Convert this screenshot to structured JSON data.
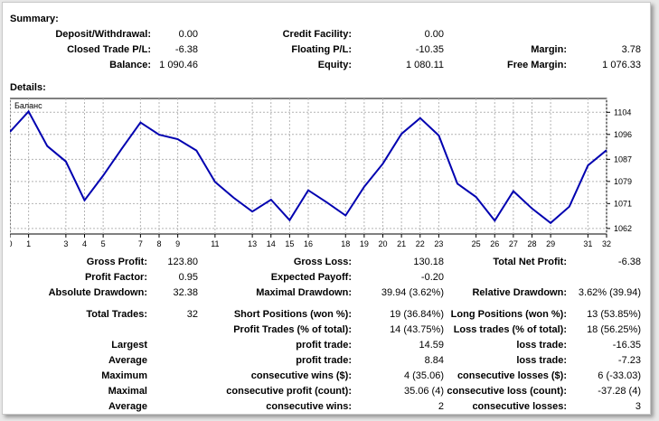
{
  "summary": {
    "title": "Summary:",
    "deposit_label": "Deposit/Withdrawal:",
    "deposit_value": "0.00",
    "credit_label": "Credit Facility:",
    "credit_value": "0.00",
    "closed_label": "Closed Trade P/L:",
    "closed_value": "-6.38",
    "floating_label": "Floating P/L:",
    "floating_value": "-10.35",
    "margin_label": "Margin:",
    "margin_value": "3.78",
    "balance_label": "Balance:",
    "balance_value": "1 090.46",
    "equity_label": "Equity:",
    "equity_value": "1 080.11",
    "free_margin_label": "Free Margin:",
    "free_margin_value": "1 076.33"
  },
  "details": {
    "title": "Details:"
  },
  "chart_data": {
    "type": "line",
    "series": [
      {
        "name": "Баланс",
        "color": "#0000b0",
        "x": [
          0,
          1,
          2,
          3,
          4,
          5,
          6,
          7,
          8,
          9,
          10,
          11,
          12,
          13,
          14,
          15,
          16,
          17,
          18,
          19,
          20,
          21,
          22,
          23,
          24,
          25,
          26,
          27,
          28,
          29,
          30,
          31,
          32
        ],
        "values": [
          1096.9,
          1104.3,
          1091.8,
          1086.2,
          1072.2,
          1081.1,
          1090.9,
          1100.3,
          1095.9,
          1094.3,
          1090.2,
          1078.8,
          1073.1,
          1068.1,
          1072.4,
          1065.0,
          1075.8,
          1071.4,
          1066.7,
          1077.1,
          1085.4,
          1096.2,
          1101.9,
          1095.6,
          1078.2,
          1073.4,
          1064.8,
          1075.5,
          1069.2,
          1064.0,
          1069.9,
          1084.8,
          1090.3
        ]
      }
    ],
    "x_ticks": [
      "0",
      "1",
      "3",
      "4",
      "5",
      "7",
      "8",
      "9",
      "11",
      "13",
      "14",
      "15",
      "16",
      "18",
      "19",
      "20",
      "21",
      "22",
      "23",
      "25",
      "26",
      "27",
      "28",
      "29",
      "31",
      "32"
    ],
    "y_ticks": [
      "1104",
      "1096",
      "1087",
      "1079",
      "1071",
      "1062"
    ],
    "grid": true,
    "legend": "top-left"
  },
  "stats": {
    "gross_profit_label": "Gross Profit:",
    "gross_profit_value": "123.80",
    "gross_loss_label": "Gross Loss:",
    "gross_loss_value": "130.18",
    "net_profit_label": "Total Net Profit:",
    "net_profit_value": "-6.38",
    "profit_factor_label": "Profit Factor:",
    "profit_factor_value": "0.95",
    "expected_payoff_label": "Expected Payoff:",
    "expected_payoff_value": "-0.20",
    "abs_dd_label": "Absolute Drawdown:",
    "abs_dd_value": "32.38",
    "max_dd_label": "Maximal Drawdown:",
    "max_dd_value": "39.94 (3.62%)",
    "rel_dd_label": "Relative Drawdown:",
    "rel_dd_value": "3.62% (39.94)",
    "total_trades_label": "Total Trades:",
    "total_trades_value": "32",
    "short_label": "Short Positions (won %):",
    "short_value": "19 (36.84%)",
    "long_label": "Long Positions (won %):",
    "long_value": "13 (53.85%)",
    "profit_trades_label": "Profit Trades (% of total):",
    "profit_trades_value": "14 (43.75%)",
    "loss_trades_label": "Loss trades (% of total):",
    "loss_trades_value": "18 (56.25%)",
    "largest_label": "Largest",
    "largest_profit_label": "profit trade:",
    "largest_profit_value": "14.59",
    "largest_loss_label": "loss trade:",
    "largest_loss_value": "-16.35",
    "average_label": "Average",
    "average_profit_label": "profit trade:",
    "average_profit_value": "8.84",
    "average_loss_label": "loss trade:",
    "average_loss_value": "-7.23",
    "maximum_label": "Maximum",
    "max_cons_wins_label": "consecutive wins ($):",
    "max_cons_wins_value": "4 (35.06)",
    "max_cons_losses_label": "consecutive losses ($):",
    "max_cons_losses_value": "6 (-33.03)",
    "maximal_label": "Maximal",
    "maximal_profit_label": "consecutive profit (count):",
    "maximal_profit_value": "35.06 (4)",
    "maximal_loss_label": "consecutive loss (count):",
    "maximal_loss_value": "-37.28 (4)",
    "average2_label": "Average",
    "avg_cons_wins_label": "consecutive wins:",
    "avg_cons_wins_value": "2",
    "avg_cons_losses_label": "consecutive losses:",
    "avg_cons_losses_value": "3"
  }
}
